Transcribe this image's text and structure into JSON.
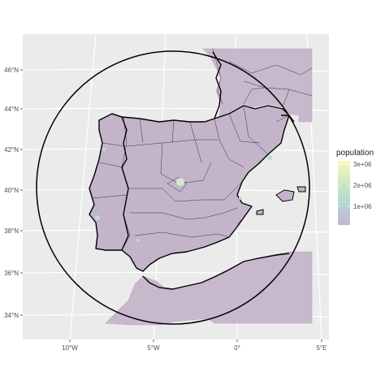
{
  "map": {
    "type": "hexbin-map",
    "lat_labels": [
      "46°N",
      "44°N",
      "42°N",
      "40°N",
      "38°N",
      "36°N",
      "34°N"
    ],
    "lon_labels": [
      "10°W",
      "5°W",
      "0°",
      "5°E"
    ],
    "legend": {
      "title": "population",
      "labels": [
        "3e+06",
        "2e+06",
        "1e+06"
      ],
      "colors": [
        "#fde725",
        "#5ec962",
        "#21918c",
        "#3b528b",
        "#440154"
      ],
      "placement": "right"
    },
    "colors": {
      "panel": "#ebebeb",
      "grid": "#ffffff",
      "fill": "#c8b8cc",
      "region": "#c2b2c8",
      "border": "#000000",
      "circle": "#000000"
    }
  }
}
